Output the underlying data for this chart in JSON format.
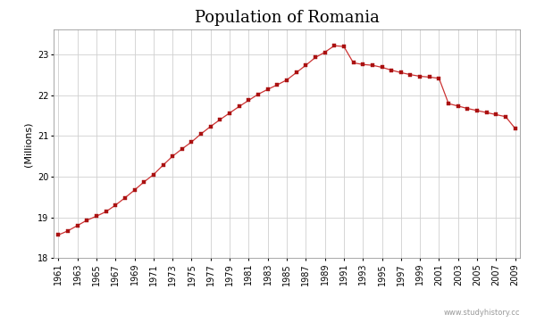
{
  "title": "Population of Romania",
  "ylabel": "(Millions)",
  "years": [
    1961,
    1962,
    1963,
    1964,
    1965,
    1966,
    1967,
    1968,
    1969,
    1970,
    1971,
    1972,
    1973,
    1974,
    1975,
    1976,
    1977,
    1978,
    1979,
    1980,
    1981,
    1982,
    1983,
    1984,
    1985,
    1986,
    1987,
    1988,
    1989,
    1990,
    1991,
    1992,
    1993,
    1994,
    1995,
    1996,
    1997,
    1998,
    1999,
    2000,
    2001,
    2002,
    2003,
    2004,
    2005,
    2006,
    2007,
    2008,
    2009
  ],
  "population": [
    18.57,
    18.67,
    18.8,
    18.93,
    19.03,
    19.14,
    19.3,
    19.48,
    19.67,
    19.87,
    20.05,
    20.28,
    20.5,
    20.68,
    20.85,
    21.05,
    21.23,
    21.4,
    21.56,
    21.72,
    21.87,
    22.02,
    22.14,
    22.25,
    22.37,
    22.55,
    22.73,
    22.92,
    23.05,
    23.21,
    23.19,
    22.79,
    22.75,
    22.73,
    22.68,
    22.61,
    22.55,
    22.5,
    22.46,
    22.44,
    22.41,
    21.79,
    21.73,
    21.67,
    21.62,
    21.57,
    21.52,
    21.47,
    21.18
  ],
  "line_color": "#cc3333",
  "marker_color": "#aa1111",
  "bg_color": "#ffffff",
  "plot_bg_color": "#ffffff",
  "grid_color": "#d0d0d0",
  "ylim": [
    18.0,
    23.6
  ],
  "yticks": [
    18,
    19,
    20,
    21,
    22,
    23
  ],
  "xtick_start": 1961,
  "xtick_end": 2010,
  "xtick_step": 2,
  "watermark": "www.studyhistory.cc",
  "title_fontsize": 13,
  "label_fontsize": 8,
  "tick_fontsize": 7
}
